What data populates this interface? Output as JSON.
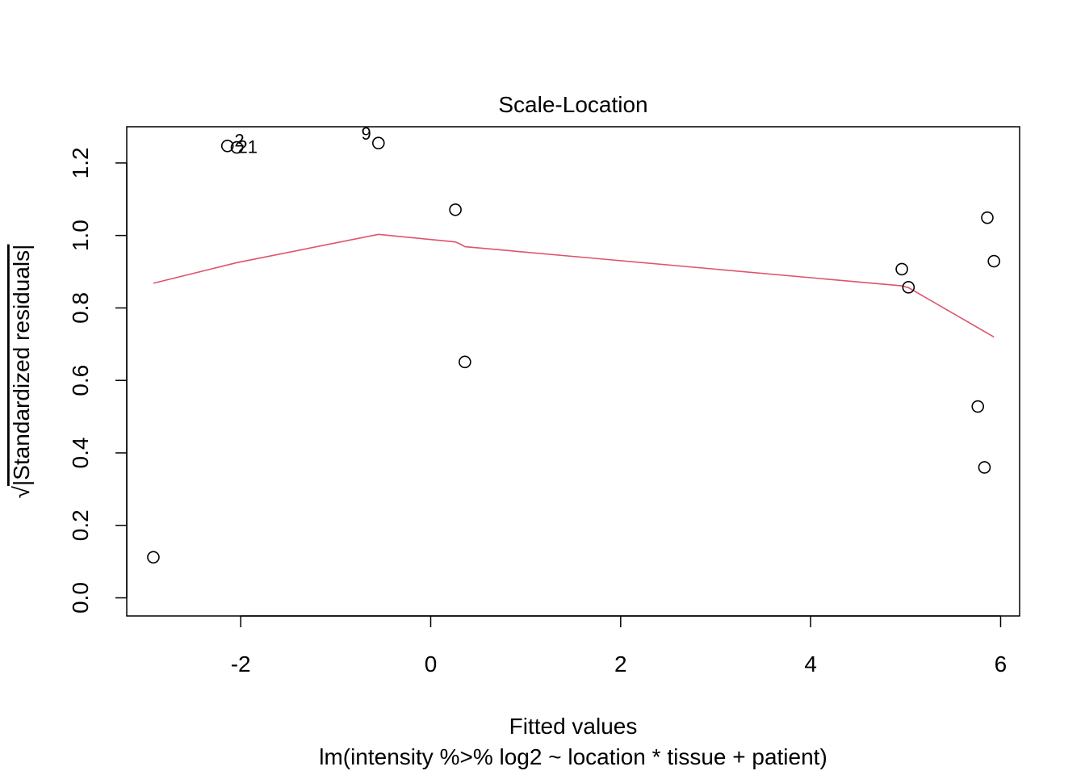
{
  "chart_data": {
    "type": "scatter",
    "title": "Scale-Location",
    "xlabel": "Fitted values",
    "subtitle": "lm(intensity %>% log2 ~ location * tissue + patient)",
    "ylabel_radical": "√",
    "ylabel": "|Standardized residuals|",
    "xlim": [
      -3.2,
      6.2
    ],
    "ylim": [
      -0.05,
      1.3
    ],
    "xticks": [
      -2,
      0,
      2,
      4,
      6
    ],
    "xtick_labels": [
      "-2",
      "0",
      "2",
      "4",
      "6"
    ],
    "yticks": [
      0.0,
      0.2,
      0.4,
      0.6,
      0.8,
      1.0,
      1.2
    ],
    "ytick_labels": [
      "0.0",
      "0.2",
      "0.4",
      "0.6",
      "0.8",
      "1.0",
      "1.2"
    ],
    "points": [
      {
        "x": -2.92,
        "y": 0.112
      },
      {
        "x": -2.14,
        "y": 1.247
      },
      {
        "x": -2.04,
        "y": 1.243
      },
      {
        "x": -0.55,
        "y": 1.255
      },
      {
        "x": 0.26,
        "y": 1.071
      },
      {
        "x": 0.36,
        "y": 0.651
      },
      {
        "x": 4.96,
        "y": 0.907
      },
      {
        "x": 5.03,
        "y": 0.857
      },
      {
        "x": 5.76,
        "y": 0.528
      },
      {
        "x": 5.83,
        "y": 0.36
      },
      {
        "x": 5.86,
        "y": 1.049
      },
      {
        "x": 5.93,
        "y": 0.929
      }
    ],
    "point_labels": [
      {
        "text": "2",
        "x": -2.04,
        "y": 1.243,
        "pos": "right-up"
      },
      {
        "text": "21",
        "x": -2.04,
        "y": 1.243,
        "pos": "right"
      },
      {
        "text": "9",
        "x": -0.55,
        "y": 1.255,
        "pos": "left"
      }
    ],
    "smooth_line": {
      "color": "#DF536B",
      "x": [
        -2.92,
        -2.04,
        -0.55,
        0.26,
        0.32,
        0.36,
        4.96,
        5.03,
        5.93
      ],
      "y": [
        0.868,
        0.925,
        1.003,
        0.982,
        0.975,
        0.969,
        0.861,
        0.856,
        0.72
      ]
    },
    "point_color": "#000000",
    "grid": false
  }
}
